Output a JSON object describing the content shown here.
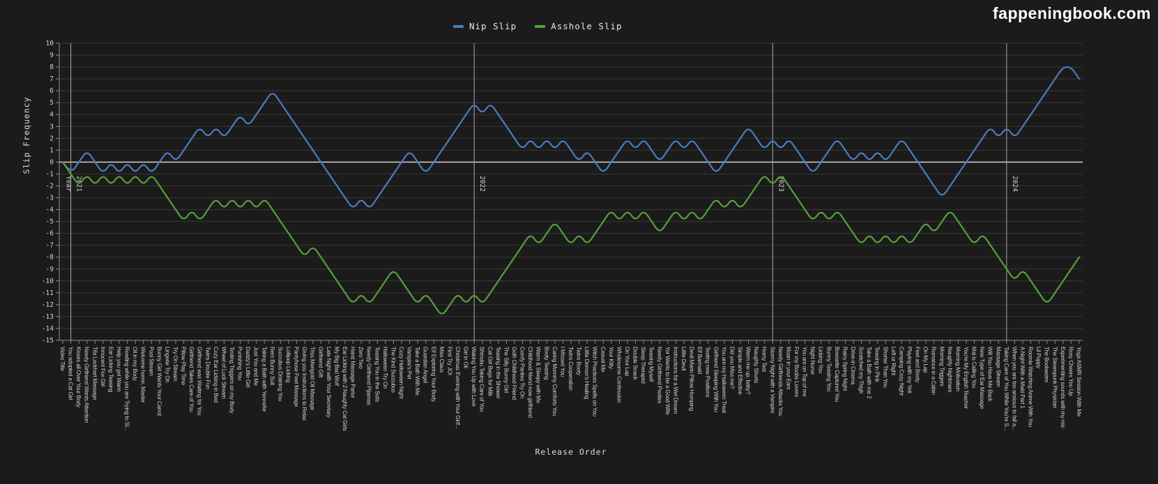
{
  "watermark": {
    "text": "fappeningbook.com"
  },
  "legend": {
    "items": [
      {
        "label": "Nip Slip",
        "color": "#4a7dbe"
      },
      {
        "label": "Asshole Slip",
        "color": "#55a03c"
      }
    ]
  },
  "axes": {
    "x_title": "Release Order",
    "y_title": "Slip Frequency"
  },
  "chart_data": {
    "type": "line",
    "title": "",
    "xlabel": "Release Order",
    "ylabel": "Slip Frequency",
    "ylim": [
      -15,
      10
    ],
    "grid": true,
    "legend_position": "top-center",
    "background": "#1b1b1b",
    "gridline_color": "#383838",
    "zero_line_color": "#c8c8c8",
    "year_line_color": "#a8a8a8",
    "axis_line_color": "#8d8d8d",
    "tick_text_color": "#d2d2d2",
    "year_markers": [
      {
        "label": "2021",
        "index": 1,
        "axis_title": "Year"
      },
      {
        "label": "2022",
        "index": 51
      },
      {
        "label": "2023",
        "index": 88
      },
      {
        "label": "2024",
        "index": 117
      }
    ],
    "categories": [
      "Video Title",
      "You adopted a Cat Girl",
      "Kisses all Over Your Body",
      "Needy Girlfriend Wants Attention",
      "Tifa Lockhart Massage",
      "Innocent Fox Girl",
      "Ear Licking Teasing",
      "Help you get Warm",
      "Reading while you are Trying to Sl...",
      "Oil in my Body",
      "Welcome home, Master",
      "Pool Stream",
      "Bunny Girl Wants Your Carrot",
      "Lingerie Try On",
      "Try On Stream",
      "Pillow Play Time",
      "Girlfriend Takes Care of You",
      "Girlfriend was Waiting for You",
      "Twins Double Fun",
      "Cozy Ear Licking in Bed",
      "Wheel of Luck Stream",
      "Testing Triggers on my Body",
      "Punishing You",
      "Daddy's Little Girl",
      "Just You and Me",
      "Taking a Bath with Yennefer",
      "Rem Bunny Suit",
      "Succubus Draining You",
      "Lollipop Licking",
      "Pantyhose Feet Massage",
      "Giving you Instructions to Relax",
      "Triss Merigold Oil Massage",
      "Girlfriend Gift",
      "Late Night with Your Secretary",
      "My Big Bad Wolf",
      "Ear Licking with 2 Naughty Cat Girls",
      "Hand Massage Parlor",
      "Zero Two",
      "Needy Girlfriend Pijamas",
      "Teasing You in the Sofa",
      "Halloween Try On",
      "The Kind Succubus",
      "Cozy Halloween Night",
      "Vampire's Pet",
      "Take a Bath With Me",
      "Guardian Angel",
      "Elf Exploring Your Body",
      "Miss Claus",
      "First Try JOI",
      "Christmas Evening with Your Girlf...",
      "Girl in Oil",
      "Waking You Up with Love",
      "Shinobu Taking Care of You",
      "Cat Girl Begs for Milk",
      "Teasing in the Shower",
      "The Silly Bunny Girl",
      "Goth Childhood Friend",
      "Comfy Panties Try On",
      "Childhood friend now girlfriend",
      "Warm & Sleepy with Me",
      "Booty Teasing",
      "Caring Mommy Comforts You",
      "I Missed You",
      "Twins Cooperation",
      "Twins Booty",
      "Little Demon's Healing",
      "Witch Practices Spells on You",
      "Casual Me",
      "Your Kitty",
      "Wholesome Confession",
      "On Your Lap",
      "Double Snack",
      "Sleep Therapist",
      "Teasing Myself",
      "Needy Girlfriend Pasties",
      "Yor Wants to be a Good Wife",
      "Instructions for a Wet Dream",
      "Little Devil",
      "Devil Marin Pillow Humping",
      "Elf Barmaid",
      "Testing new Positions",
      "Girlfriend Sleeping With You",
      "You are my Halloween Treat",
      "Did you Miss me?",
      "Simple and Effective",
      "Warm me up, baby?",
      "Naughty Shorts",
      "Horny Test",
      "Stormy Night with a Vampire",
      "Needy Girlfriends Attacks You",
      "Moan in your Ears",
      "For my Boobs Lovers",
      "You are on Top of me",
      "Night Nurse",
      "Licking You",
      "Bunny Teasing You",
      "Bowsette Captured You",
      "Rainy Spring Night",
      "Drive-in Cinema",
      "Scratched my Thigh",
      "Take a Bath with me 2",
      "Teasing in Pink",
      "Shorter Than You",
      "Left or Right",
      "Camping Cozy Night",
      "Playing with my Yeti",
      "Feet and Booty",
      "On My Lap",
      "Romance in a Cabin",
      "Morning Triggers",
      "Naughty Nightmare",
      "Morning Motivation",
      "You're My English Teacher",
      "Mai is Calling You",
      "New Type of Ear Massage",
      "Will You Have Me Back",
      "Massage Stream",
      "Taking Care of You While You're S...",
      "When you are too anxious to fall a...",
      "A Night With a Maid Part 1",
      "Roomie Watching Anime With You",
      "Lil Puppy",
      "The Bookworm",
      "The Steampunk Physician",
      "Experimenting sounds with my mic",
      "Roxy Cheers You Up",
      "Yoga ASMR Session With Me"
    ],
    "series": [
      {
        "name": "Nip Slip",
        "color": "#4a7dbe",
        "values": [
          0,
          -1,
          0,
          1,
          0,
          -1,
          0,
          -1,
          0,
          -1,
          0,
          -1,
          0,
          1,
          0,
          1,
          2,
          3,
          2,
          3,
          2,
          3,
          4,
          3,
          4,
          5,
          6,
          5,
          4,
          3,
          2,
          1,
          0,
          -1,
          -2,
          -3,
          -4,
          -3,
          -4,
          -3,
          -2,
          -1,
          0,
          1,
          0,
          -1,
          0,
          1,
          2,
          3,
          4,
          5,
          4,
          5,
          4,
          3,
          2,
          1,
          2,
          1,
          2,
          1,
          2,
          1,
          0,
          1,
          0,
          -1,
          0,
          1,
          2,
          1,
          2,
          1,
          0,
          1,
          2,
          1,
          2,
          1,
          0,
          -1,
          0,
          1,
          2,
          3,
          2,
          1,
          2,
          1,
          2,
          1,
          0,
          -1,
          0,
          1,
          2,
          1,
          0,
          1,
          0,
          1,
          0,
          1,
          2,
          1,
          0,
          -1,
          -2,
          -3,
          -2,
          -1,
          0,
          1,
          2,
          3,
          2,
          3,
          2,
          3,
          4,
          5,
          6,
          7,
          8,
          8,
          7
        ]
      },
      {
        "name": "Asshole Slip",
        "color": "#55a03c",
        "values": [
          0,
          -1,
          -2,
          -1,
          -2,
          -1,
          -2,
          -1,
          -2,
          -1,
          -2,
          -1,
          -2,
          -3,
          -4,
          -5,
          -4,
          -5,
          -4,
          -3,
          -4,
          -3,
          -4,
          -3,
          -4,
          -3,
          -4,
          -5,
          -6,
          -7,
          -8,
          -7,
          -8,
          -9,
          -10,
          -11,
          -12,
          -11,
          -12,
          -11,
          -10,
          -9,
          -10,
          -11,
          -12,
          -11,
          -12,
          -13,
          -12,
          -11,
          -12,
          -11,
          -12,
          -11,
          -10,
          -9,
          -8,
          -7,
          -6,
          -7,
          -6,
          -5,
          -6,
          -7,
          -6,
          -7,
          -6,
          -5,
          -4,
          -5,
          -4,
          -5,
          -4,
          -5,
          -6,
          -5,
          -4,
          -5,
          -4,
          -5,
          -4,
          -3,
          -4,
          -3,
          -4,
          -3,
          -2,
          -1,
          -2,
          -1,
          -2,
          -3,
          -4,
          -5,
          -4,
          -5,
          -4,
          -5,
          -6,
          -7,
          -6,
          -7,
          -6,
          -7,
          -6,
          -7,
          -6,
          -5,
          -6,
          -5,
          -4,
          -5,
          -6,
          -7,
          -6,
          -7,
          -8,
          -9,
          -10,
          -9,
          -10,
          -11,
          -12,
          -11,
          -10,
          -9,
          -8
        ]
      }
    ]
  }
}
